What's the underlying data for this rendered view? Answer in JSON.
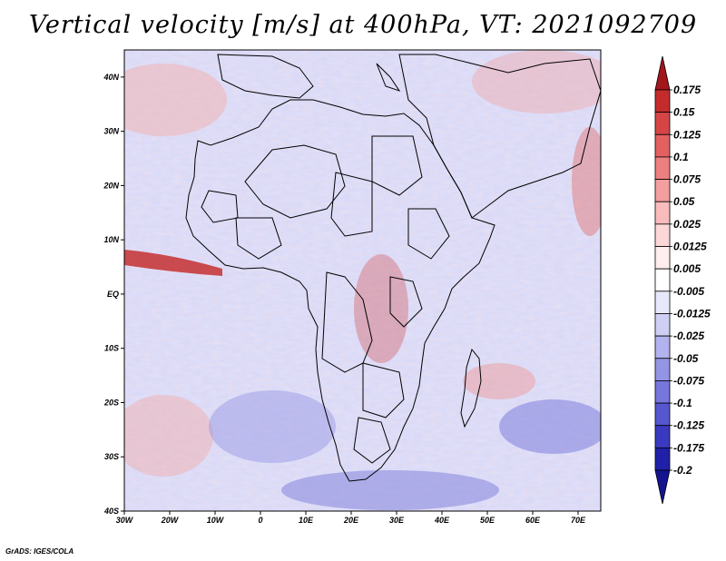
{
  "title": "Vertical velocity [m/s] at 400hPa, VT: 2021092709",
  "footer": "GrADS: IGES/COLA",
  "map": {
    "lon_range": [
      -30,
      75
    ],
    "lat_range": [
      -40,
      45
    ],
    "x_ticks": [
      "30W",
      "20W",
      "10W",
      "0",
      "10E",
      "20E",
      "30E",
      "40E",
      "50E",
      "60E",
      "70E"
    ],
    "y_ticks": [
      "40S",
      "30S",
      "20S",
      "10S",
      "EQ",
      "10N",
      "20N",
      "30N",
      "40N"
    ]
  },
  "colorbar": {
    "labels": [
      "0.175",
      "0.15",
      "0.125",
      "0.1",
      "0.075",
      "0.05",
      "0.025",
      "0.0125",
      "0.005",
      "-0.005",
      "-0.0125",
      "-0.025",
      "-0.05",
      "-0.075",
      "-0.1",
      "-0.125",
      "-0.175",
      "-0.2"
    ],
    "colors": [
      "#a3161b",
      "#c42c2c",
      "#d64545",
      "#e36060",
      "#ec7f7f",
      "#f39f9f",
      "#f8bcbc",
      "#fcd7d7",
      "#ffeeee",
      "#ffffff",
      "#e8e8fb",
      "#cfcff5",
      "#b2b2ee",
      "#9494e5",
      "#7676dc",
      "#5656cf",
      "#3a3ac0",
      "#2020a8",
      "#141490"
    ]
  },
  "colors": {
    "land_outline": "#000000",
    "background": "#ffffff"
  }
}
